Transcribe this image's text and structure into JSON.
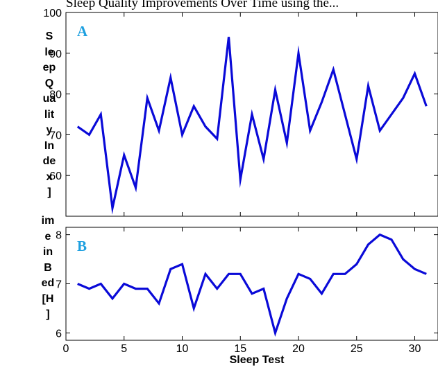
{
  "caption_fragment": "Sleep Quality Improvements Over Time using the...",
  "xlabel": "Sleep Test",
  "chart_data": [
    {
      "type": "line",
      "panel_label": "A",
      "ylabel_lines": [
        "S",
        "le",
        "ep",
        "Q",
        "ua",
        "lit",
        "y",
        "In",
        "de",
        "x",
        "]"
      ],
      "x": [
        1,
        2,
        3,
        4,
        5,
        6,
        7,
        8,
        9,
        10,
        11,
        12,
        13,
        14,
        15,
        16,
        17,
        18,
        19,
        20,
        21,
        22,
        23,
        24,
        25,
        26,
        27,
        28,
        29,
        30,
        31
      ],
      "y": [
        72,
        70,
        75,
        52,
        65,
        57,
        79,
        71,
        84,
        70,
        77,
        72,
        69,
        94,
        59,
        75,
        64,
        81,
        68,
        90,
        71,
        78,
        86,
        75,
        64,
        82,
        71,
        75,
        79,
        85,
        77
      ],
      "xlim": [
        0,
        32
      ],
      "ylim": [
        50,
        100
      ],
      "yticks": [
        60,
        70,
        80,
        90,
        100
      ],
      "line_color": "#0a0ad8",
      "label_color": "#1ea0e0"
    },
    {
      "type": "line",
      "panel_label": "B",
      "ylabel_lines": [
        "im",
        "e",
        "in",
        "B",
        "ed",
        "[H",
        "]"
      ],
      "x": [
        1,
        2,
        3,
        4,
        5,
        6,
        7,
        8,
        9,
        10,
        11,
        12,
        13,
        14,
        15,
        16,
        17,
        18,
        19,
        20,
        21,
        22,
        23,
        24,
        25,
        26,
        27,
        28,
        29,
        30,
        31
      ],
      "y": [
        7.0,
        6.9,
        7.0,
        6.7,
        7.0,
        6.9,
        6.9,
        6.6,
        7.3,
        7.4,
        6.5,
        7.2,
        6.9,
        7.2,
        7.2,
        6.8,
        6.9,
        6.0,
        6.7,
        7.2,
        7.1,
        6.8,
        7.2,
        7.2,
        7.4,
        7.8,
        8.0,
        7.9,
        7.5,
        7.3,
        7.2
      ],
      "xlim": [
        0,
        32
      ],
      "ylim": [
        5.85,
        8.15
      ],
      "yticks": [
        6,
        7,
        8
      ],
      "xticks": [
        0,
        5,
        10,
        15,
        20,
        25,
        30
      ],
      "line_color": "#0a0ad8",
      "label_color": "#1ea0e0"
    }
  ]
}
